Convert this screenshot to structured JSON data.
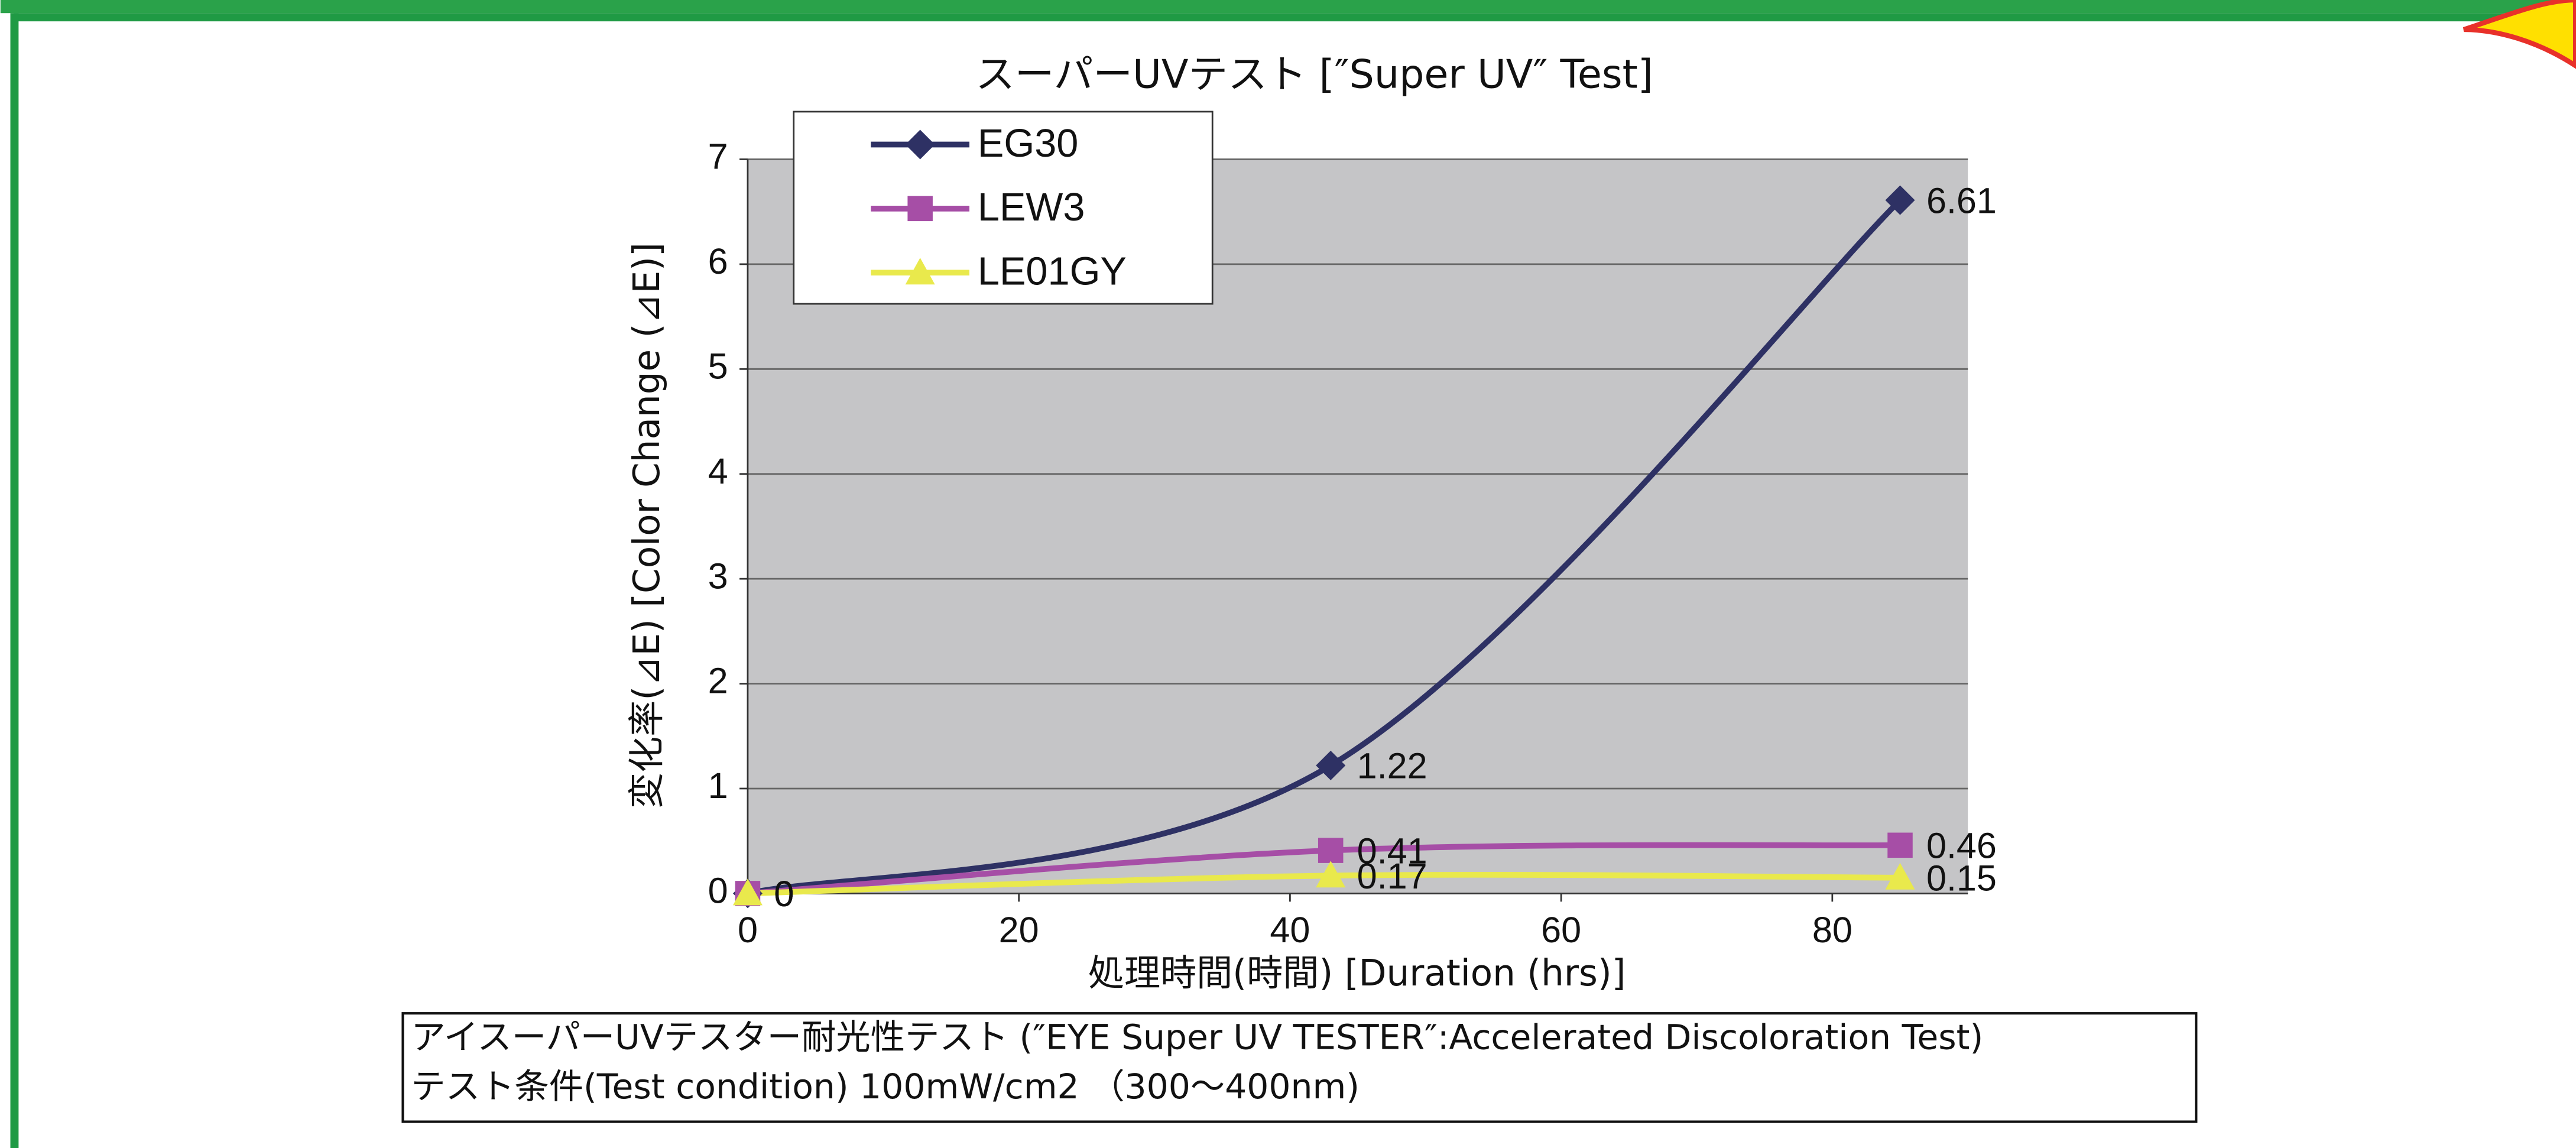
{
  "chart_data": {
    "type": "line",
    "title": "スーパーUVテスト [″Super UV″ Test]",
    "xlabel": "処理時間(時間) [Duration (hrs)]",
    "ylabel": "変化率(⊿E)  [Color Change (⊿E)]",
    "x": [
      0,
      43,
      85
    ],
    "series": [
      {
        "name": "EG30",
        "color": "#2e3164",
        "marker": "diamond",
        "values": [
          0,
          1.22,
          6.61
        ],
        "value_labels": [
          "0",
          "1.22",
          "6.61"
        ]
      },
      {
        "name": "LEW3",
        "color": "#a64ea6",
        "marker": "square",
        "values": [
          0,
          0.41,
          0.46
        ],
        "value_labels": [
          "0",
          "0.41",
          "0.46"
        ]
      },
      {
        "name": "LE01GY",
        "color": "#e9e94c",
        "marker": "triangle",
        "values": [
          0,
          0.17,
          0.15
        ],
        "value_labels": [
          "0",
          "0.17",
          "0.15"
        ]
      }
    ],
    "xlim": [
      0,
      90
    ],
    "xticks": [
      0,
      20,
      40,
      60,
      80
    ],
    "ylim": [
      0,
      7
    ],
    "yticks": [
      0,
      1,
      2,
      3,
      4,
      5,
      6,
      7
    ],
    "grid": true,
    "legend": "top-left"
  },
  "notes": [
    "アイスーパーUVテスター耐光性テスト (″EYE Super UV TESTER″:Accelerated  Discoloration Test)",
    "テスト条件(Test condition)  100mW/cm2 （300〜400nm)"
  ]
}
